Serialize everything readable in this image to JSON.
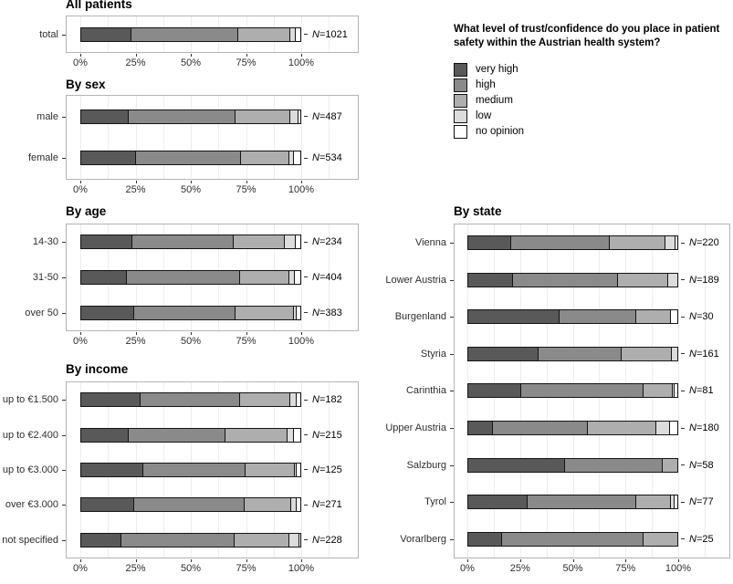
{
  "legend": {
    "title": "What level of trust/confidence do you place in patient safety within the Austrian health system?",
    "items": [
      {
        "label": "very high",
        "color": "#595959"
      },
      {
        "label": "high",
        "color": "#8a8a8a"
      },
      {
        "label": "medium",
        "color": "#aeaeae"
      },
      {
        "label": "low",
        "color": "#dcdcdc"
      },
      {
        "label": "no opinion",
        "color": "#ffffff"
      }
    ]
  },
  "axis_ticks": [
    "0%",
    "25%",
    "50%",
    "75%",
    "100%"
  ],
  "chart_data": [
    {
      "type": "bar",
      "orientation": "horizontal",
      "stacked": true,
      "xlim": [
        0,
        100
      ],
      "title": "All patients",
      "categories": [
        "total"
      ],
      "n_labels": [
        "N=1021"
      ],
      "series": [
        {
          "name": "very high",
          "values": [
            23
          ]
        },
        {
          "name": "high",
          "values": [
            48.5
          ]
        },
        {
          "name": "medium",
          "values": [
            24
          ]
        },
        {
          "name": "low",
          "values": [
            2.5
          ]
        },
        {
          "name": "no opinion",
          "values": [
            2
          ]
        }
      ]
    },
    {
      "type": "bar",
      "orientation": "horizontal",
      "stacked": true,
      "xlim": [
        0,
        100
      ],
      "title": "By sex",
      "categories": [
        "male",
        "female"
      ],
      "n_labels": [
        "N=487",
        "N=534"
      ],
      "series": [
        {
          "name": "very high",
          "values": [
            21.5,
            25
          ]
        },
        {
          "name": "high",
          "values": [
            49,
            48
          ]
        },
        {
          "name": "medium",
          "values": [
            25,
            22
          ]
        },
        {
          "name": "low",
          "values": [
            3.5,
            2
          ]
        },
        {
          "name": "no opinion",
          "values": [
            1,
            3
          ]
        }
      ]
    },
    {
      "type": "bar",
      "orientation": "horizontal",
      "stacked": true,
      "xlim": [
        0,
        100
      ],
      "title": "By age",
      "categories": [
        "14-30",
        "31-50",
        "over 50"
      ],
      "n_labels": [
        "N=234",
        "N=404",
        "N=383"
      ],
      "series": [
        {
          "name": "very high",
          "values": [
            23.5,
            21,
            24
          ]
        },
        {
          "name": "high",
          "values": [
            46,
            51.5,
            46.5
          ]
        },
        {
          "name": "medium",
          "values": [
            23.5,
            22.5,
            26.5
          ]
        },
        {
          "name": "low",
          "values": [
            5,
            2.5,
            1.5
          ]
        },
        {
          "name": "no opinion",
          "values": [
            2,
            2.5,
            1.5
          ]
        }
      ]
    },
    {
      "type": "bar",
      "orientation": "horizontal",
      "stacked": true,
      "xlim": [
        0,
        100
      ],
      "title": "By income",
      "categories": [
        "up to €1.500",
        "up to €2.400",
        "up to €3.000",
        "over €3.000",
        "not specified"
      ],
      "n_labels": [
        "N=182",
        "N=215",
        "N=125",
        "N=271",
        "N=228"
      ],
      "series": [
        {
          "name": "very high",
          "values": [
            27,
            21.5,
            28.5,
            24,
            18.5
          ]
        },
        {
          "name": "high",
          "values": [
            45.5,
            44.5,
            46.5,
            50.5,
            51.5
          ]
        },
        {
          "name": "medium",
          "values": [
            23,
            28,
            22.5,
            21.5,
            25
          ]
        },
        {
          "name": "low",
          "values": [
            3,
            3,
            1,
            2.5,
            4.5
          ]
        },
        {
          "name": "no opinion",
          "values": [
            1.5,
            3,
            1.5,
            1.5,
            0.5
          ]
        }
      ]
    },
    {
      "type": "bar",
      "orientation": "horizontal",
      "stacked": true,
      "xlim": [
        0,
        100
      ],
      "title": "By state",
      "categories": [
        "Vienna",
        "Lower Austria",
        "Burgenland",
        "Styria",
        "Carinthia",
        "Upper Austria",
        "Salzburg",
        "Tyrol",
        "Vorarlberg"
      ],
      "n_labels": [
        "N=220",
        "N=189",
        "N=30",
        "N=161",
        "N=81",
        "N=180",
        "N=58",
        "N=77",
        "N=25"
      ],
      "series": [
        {
          "name": "very high",
          "values": [
            20.5,
            21.5,
            43.5,
            33.5,
            25.5,
            12,
            46.5,
            28.5,
            16
          ]
        },
        {
          "name": "high",
          "values": [
            47,
            50,
            37,
            40,
            58.5,
            45,
            46.5,
            52,
            68
          ]
        },
        {
          "name": "medium",
          "values": [
            27,
            24,
            16.5,
            24,
            14,
            33,
            7,
            16.5,
            16
          ]
        },
        {
          "name": "low",
          "values": [
            4.5,
            4.5,
            0,
            2.5,
            0.5,
            6.5,
            0,
            1.5,
            0
          ]
        },
        {
          "name": "no opinion",
          "values": [
            1,
            0,
            3,
            0,
            1.5,
            3.5,
            0,
            1.5,
            0
          ]
        }
      ]
    }
  ]
}
